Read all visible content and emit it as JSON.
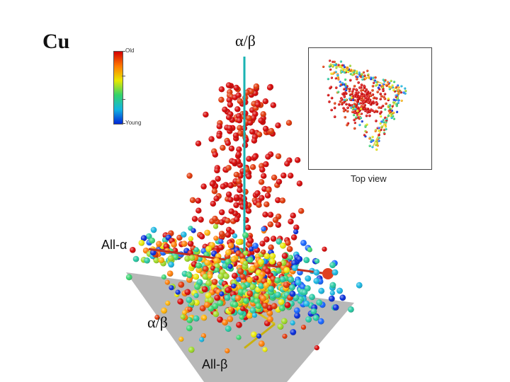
{
  "title": "Cu",
  "axes": {
    "vertical_top": "α/β",
    "left": "All-α",
    "front": "α/β",
    "bottom": "All-β"
  },
  "colorbar": {
    "top_label": "Old",
    "bottom_label": "Young"
  },
  "inset": {
    "caption": "Top view"
  },
  "colors": {
    "old": "#d40000",
    "young": "#0026d8",
    "axis_cyan": "#1ab3b3",
    "plane_gray": "#b8b8b8",
    "arrow_red": "#e04020",
    "arrow_yellow": "#d8c020"
  }
}
